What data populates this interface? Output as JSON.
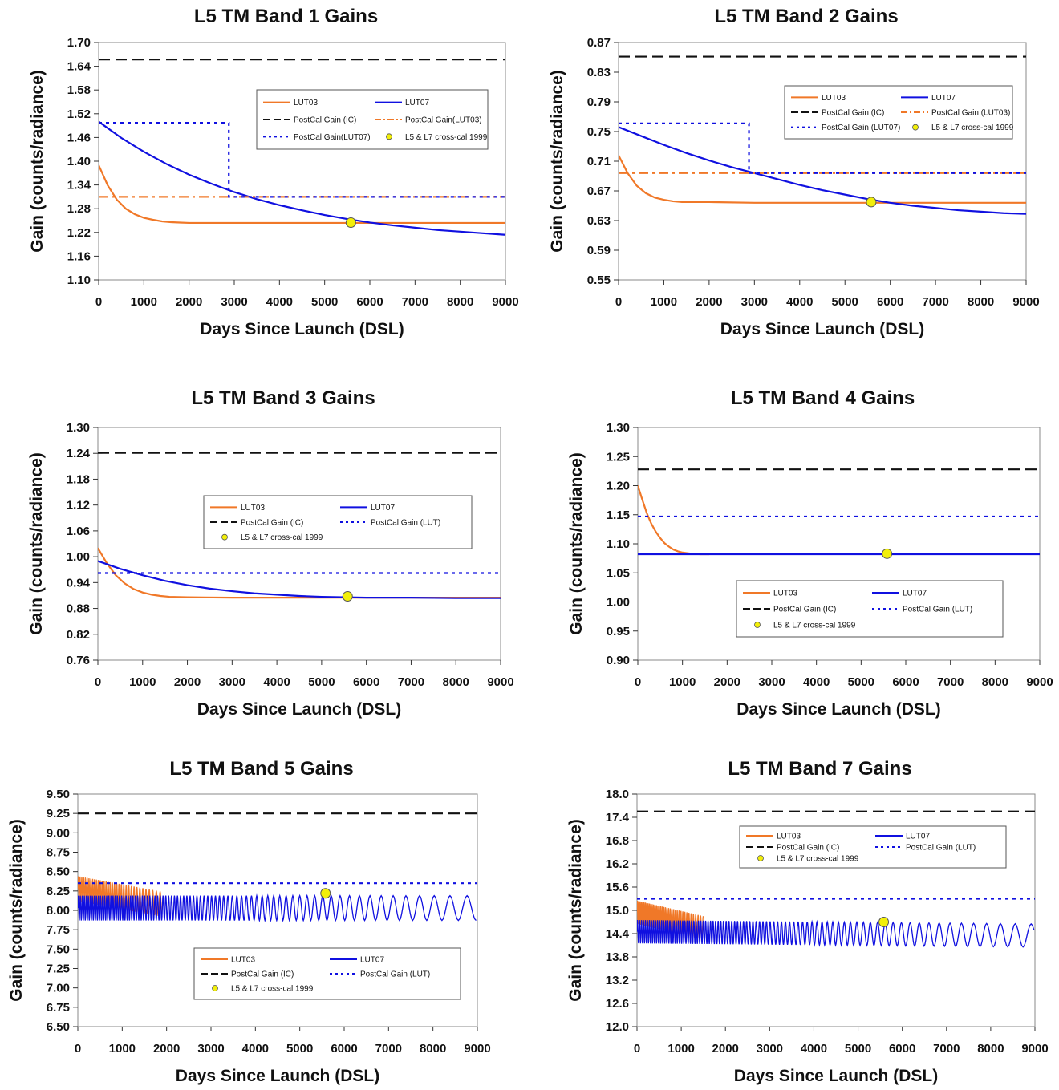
{
  "chart_data": [
    {
      "type": "line",
      "title": "L5 TM Band 1 Gains",
      "xlabel": "Days Since Launch (DSL)",
      "ylabel": "Gain (counts/radiance)",
      "xlim": [
        0,
        9000
      ],
      "ylim": [
        1.1,
        1.7
      ],
      "xticks": [
        "0",
        "1000",
        "2000",
        "3000",
        "4000",
        "5000",
        "6000",
        "7000",
        "8000",
        "9000"
      ],
      "yticks": [
        "1.10",
        "1.16",
        "1.22",
        "1.28",
        "1.34",
        "1.40",
        "1.46",
        "1.52",
        "1.58",
        "1.64",
        "1.70"
      ],
      "series": [
        {
          "name": "LUT03",
          "color": "#f07828",
          "style": "solid",
          "x": [
            0,
            200,
            400,
            600,
            800,
            1000,
            1200,
            1400,
            1600,
            1800,
            2000,
            2500,
            3000,
            4000,
            5000,
            6000,
            7000,
            8000,
            9000
          ],
          "y": [
            1.39,
            1.339,
            1.303,
            1.28,
            1.266,
            1.257,
            1.252,
            1.248,
            1.246,
            1.245,
            1.244,
            1.244,
            1.244,
            1.244,
            1.244,
            1.244,
            1.244,
            1.244,
            1.244
          ]
        },
        {
          "name": "LUT07",
          "color": "#1010e0",
          "style": "solid",
          "x": [
            0,
            500,
            1000,
            1500,
            2000,
            2500,
            3000,
            3500,
            4000,
            4500,
            5000,
            5500,
            6000,
            6500,
            7000,
            7500,
            8000,
            8500,
            9000
          ],
          "y": [
            1.5,
            1.459,
            1.424,
            1.393,
            1.366,
            1.343,
            1.322,
            1.304,
            1.289,
            1.276,
            1.264,
            1.254,
            1.245,
            1.238,
            1.232,
            1.226,
            1.222,
            1.218,
            1.214
          ]
        },
        {
          "name": "PostCal Gain (IC)",
          "color": "#111111",
          "style": "dash",
          "x": [
            0,
            9000
          ],
          "y": [
            1.657,
            1.657
          ]
        },
        {
          "name": "PostCal Gain(LUT03)",
          "color": "#f07828",
          "style": "dashdot",
          "x": [
            0,
            9000
          ],
          "y": [
            1.31,
            1.31
          ]
        },
        {
          "name": "PostCal Gain(LUT07)",
          "color": "#1010e0",
          "style": "dot",
          "x": [
            0,
            2880,
            2880,
            9000
          ],
          "y": [
            1.497,
            1.497,
            1.31,
            1.31
          ]
        },
        {
          "name": "L5 & L7 cross-cal 1999",
          "color": "#f2ef0a",
          "style": "marker",
          "x": [
            5580
          ],
          "y": [
            1.245
          ]
        }
      ],
      "legend": {
        "placement": "top-right",
        "items": [
          "LUT03",
          "LUT07",
          "PostCal Gain (IC)",
          "PostCal Gain(LUT03)",
          "PostCal Gain(LUT07)",
          "L5 & L7 cross-cal 1999"
        ]
      }
    },
    {
      "type": "line",
      "title": "L5 TM Band 2 Gains",
      "xlabel": "Days Since Launch (DSL)",
      "ylabel": "Gain (counts/radiance)",
      "xlim": [
        0,
        9000
      ],
      "ylim": [
        0.55,
        0.87
      ],
      "xticks": [
        "0",
        "1000",
        "2000",
        "3000",
        "4000",
        "5000",
        "6000",
        "7000",
        "8000",
        "9000"
      ],
      "yticks": [
        "0.55",
        "0.59",
        "0.63",
        "0.67",
        "0.71",
        "0.75",
        "0.79",
        "0.83",
        "0.87"
      ],
      "series": [
        {
          "name": "LUT03",
          "color": "#f07828",
          "style": "solid",
          "x": [
            0,
            200,
            400,
            600,
            800,
            1000,
            1200,
            1400,
            1600,
            2000,
            3000,
            4000,
            5000,
            6000,
            7000,
            8000,
            9000
          ],
          "y": [
            0.718,
            0.694,
            0.677,
            0.667,
            0.661,
            0.658,
            0.656,
            0.655,
            0.655,
            0.655,
            0.654,
            0.654,
            0.654,
            0.654,
            0.654,
            0.654,
            0.654
          ]
        },
        {
          "name": "LUT07",
          "color": "#1010e0",
          "style": "solid",
          "x": [
            0,
            500,
            1000,
            1500,
            2000,
            2500,
            3000,
            3500,
            4000,
            4500,
            5000,
            5500,
            6000,
            6500,
            7000,
            7500,
            8000,
            8500,
            9000
          ],
          "y": [
            0.756,
            0.744,
            0.732,
            0.721,
            0.711,
            0.702,
            0.694,
            0.686,
            0.678,
            0.671,
            0.665,
            0.659,
            0.654,
            0.65,
            0.647,
            0.644,
            0.642,
            0.64,
            0.639
          ]
        },
        {
          "name": "PostCal Gain (IC)",
          "color": "#111111",
          "style": "dash",
          "x": [
            0,
            9000
          ],
          "y": [
            0.851,
            0.851
          ]
        },
        {
          "name": "PostCal Gain (LUT03)",
          "color": "#f07828",
          "style": "dashdot",
          "x": [
            0,
            9000
          ],
          "y": [
            0.694,
            0.694
          ]
        },
        {
          "name": "PostCal Gain (LUT07)",
          "color": "#1010e0",
          "style": "dot",
          "x": [
            0,
            2880,
            2880,
            9000
          ],
          "y": [
            0.761,
            0.761,
            0.694,
            0.694
          ]
        },
        {
          "name": "L5 & L7 cross-cal 1999",
          "color": "#f2ef0a",
          "style": "marker",
          "x": [
            5580
          ],
          "y": [
            0.655
          ]
        }
      ],
      "legend": {
        "placement": "top-right",
        "items": [
          "LUT03",
          "LUT07",
          "PostCal Gain (IC)",
          "PostCal Gain (LUT03)",
          "PostCal Gain (LUT07)",
          "L5 & L7 cross-cal 1999"
        ]
      }
    },
    {
      "type": "line",
      "title": "L5 TM Band 3 Gains",
      "xlabel": "Days Since Launch (DSL)",
      "ylabel": "Gain (counts/radiance)",
      "xlim": [
        0,
        9000
      ],
      "ylim": [
        0.76,
        1.3
      ],
      "xticks": [
        "0",
        "1000",
        "2000",
        "3000",
        "4000",
        "5000",
        "6000",
        "7000",
        "8000",
        "9000"
      ],
      "yticks": [
        "0.76",
        "0.82",
        "0.88",
        "0.94",
        "1.00",
        "1.06",
        "1.12",
        "1.18",
        "1.24",
        "1.30"
      ],
      "series": [
        {
          "name": "LUT03",
          "color": "#f07828",
          "style": "solid",
          "x": [
            0,
            200,
            400,
            600,
            800,
            1000,
            1200,
            1400,
            1600,
            2000,
            3000,
            4000,
            5000,
            6000,
            7000,
            8000,
            9000
          ],
          "y": [
            1.02,
            0.985,
            0.957,
            0.938,
            0.925,
            0.917,
            0.912,
            0.909,
            0.907,
            0.906,
            0.905,
            0.905,
            0.905,
            0.905,
            0.905,
            0.905,
            0.905
          ]
        },
        {
          "name": "LUT07",
          "color": "#1010e0",
          "style": "solid",
          "x": [
            0,
            500,
            1000,
            1500,
            2000,
            2500,
            3000,
            3500,
            4000,
            4500,
            5000,
            6000,
            7000,
            8000,
            9000
          ],
          "y": [
            0.99,
            0.972,
            0.957,
            0.944,
            0.934,
            0.926,
            0.92,
            0.915,
            0.912,
            0.909,
            0.907,
            0.905,
            0.905,
            0.904,
            0.904
          ]
        },
        {
          "name": "PostCal Gain (IC)",
          "color": "#111111",
          "style": "dash",
          "x": [
            0,
            9000
          ],
          "y": [
            1.241,
            1.241
          ]
        },
        {
          "name": "PostCal Gain (LUT)",
          "color": "#1010e0",
          "style": "dot",
          "x": [
            0,
            9000
          ],
          "y": [
            0.962,
            0.962
          ]
        },
        {
          "name": "L5 & L7 cross-cal 1999",
          "color": "#f2ef0a",
          "style": "marker",
          "x": [
            5580
          ],
          "y": [
            0.908
          ]
        }
      ],
      "legend": {
        "placement": "center",
        "items": [
          "LUT03",
          "LUT07",
          "PostCal Gain (IC)",
          "PostCal Gain (LUT)",
          "L5 & L7 cross-cal 1999"
        ]
      }
    },
    {
      "type": "line",
      "title": "L5 TM Band 4 Gains",
      "xlabel": "Days Since Launch (DSL)",
      "ylabel": "Gain (counts/radiance)",
      "xlim": [
        0,
        9000
      ],
      "ylim": [
        0.9,
        1.3
      ],
      "xticks": [
        "0",
        "1000",
        "2000",
        "3000",
        "4000",
        "5000",
        "6000",
        "7000",
        "8000",
        "9000"
      ],
      "yticks": [
        "0.90",
        "0.95",
        "1.00",
        "1.05",
        "1.10",
        "1.15",
        "1.20",
        "1.25",
        "1.30"
      ],
      "series": [
        {
          "name": "LUT03",
          "color": "#f07828",
          "style": "solid",
          "x": [
            0,
            100,
            200,
            300,
            400,
            500,
            600,
            700,
            800,
            900,
            1000,
            1200,
            1400,
            1600
          ],
          "y": [
            1.2,
            1.176,
            1.153,
            1.135,
            1.121,
            1.11,
            1.101,
            1.095,
            1.09,
            1.087,
            1.085,
            1.083,
            1.082,
            1.082
          ]
        },
        {
          "name": "LUT07",
          "color": "#1010e0",
          "style": "solid",
          "x": [
            0,
            9000
          ],
          "y": [
            1.082,
            1.082
          ]
        },
        {
          "name": "PostCal Gain (IC)",
          "color": "#111111",
          "style": "dash",
          "x": [
            0,
            9000
          ],
          "y": [
            1.228,
            1.228
          ]
        },
        {
          "name": "PostCal Gain (LUT)",
          "color": "#1010e0",
          "style": "dot",
          "x": [
            0,
            9000
          ],
          "y": [
            1.147,
            1.147
          ]
        },
        {
          "name": "L5 & L7 cross-cal 1999",
          "color": "#f2ef0a",
          "style": "marker",
          "x": [
            5580
          ],
          "y": [
            1.083
          ]
        }
      ],
      "legend": {
        "placement": "lower-center",
        "items": [
          "LUT03",
          "LUT07",
          "PostCal Gain (IC)",
          "PostCal Gain (LUT)",
          "L5 & L7 cross-cal 1999"
        ]
      }
    },
    {
      "type": "line",
      "title": "L5 TM Band 5 Gains",
      "xlabel": "Days Since Launch (DSL)",
      "ylabel": "Gain (counts/radiance)",
      "xlim": [
        0,
        9000
      ],
      "ylim": [
        6.5,
        9.5
      ],
      "xticks": [
        "0",
        "1000",
        "2000",
        "3000",
        "4000",
        "5000",
        "6000",
        "7000",
        "8000",
        "9000"
      ],
      "yticks": [
        "6.50",
        "6.75",
        "7.00",
        "7.25",
        "7.50",
        "7.75",
        "8.00",
        "8.25",
        "8.50",
        "8.75",
        "9.00",
        "9.25",
        "9.50"
      ],
      "series": [
        {
          "name": "LUT03",
          "color": "#f07828",
          "style": "oscillating",
          "start": 0,
          "end": 1900,
          "base_start": 8.28,
          "base_end": 8.08,
          "amplitude": 0.16,
          "period_start": 40,
          "period_end": 90
        },
        {
          "name": "LUT07",
          "color": "#1010e0",
          "style": "oscillating",
          "start": 0,
          "end": 9000,
          "base_start": 8.03,
          "base_end": 8.03,
          "amplitude": 0.16,
          "period_start": 45,
          "period_end": 420
        },
        {
          "name": "PostCal Gain (IC)",
          "color": "#111111",
          "style": "dash",
          "x": [
            0,
            9000
          ],
          "y": [
            9.25,
            9.25
          ]
        },
        {
          "name": "PostCal Gain (LUT)",
          "color": "#1010e0",
          "style": "dot",
          "x": [
            0,
            9000
          ],
          "y": [
            8.35,
            8.35
          ]
        },
        {
          "name": "L5 & L7 cross-cal 1999",
          "color": "#f2ef0a",
          "style": "marker",
          "x": [
            5580
          ],
          "y": [
            8.22
          ]
        }
      ],
      "legend": {
        "placement": "lower-center",
        "items": [
          "LUT03",
          "LUT07",
          "PostCal Gain (IC)",
          "PostCal Gain (LUT)",
          "L5 & L7 cross-cal 1999"
        ]
      }
    },
    {
      "type": "line",
      "title": "L5 TM Band 7 Gains",
      "xlabel": "Days Since Launch (DSL)",
      "ylabel": "Gain (counts/radiance)",
      "xlim": [
        0,
        9000
      ],
      "ylim": [
        12.0,
        18.0
      ],
      "xticks": [
        "0",
        "1000",
        "2000",
        "3000",
        "4000",
        "5000",
        "6000",
        "7000",
        "8000",
        "9000"
      ],
      "yticks": [
        "12.0",
        "12.6",
        "13.2",
        "13.8",
        "14.4",
        "15.0",
        "15.6",
        "16.2",
        "16.8",
        "17.4",
        "18.0"
      ],
      "series": [
        {
          "name": "LUT03",
          "color": "#f07828",
          "style": "oscillating",
          "start": 0,
          "end": 1500,
          "base_start": 14.95,
          "base_end": 14.55,
          "amplitude": 0.3,
          "period_start": 30,
          "period_end": 60
        },
        {
          "name": "LUT07",
          "color": "#1010e0",
          "style": "oscillating",
          "start": 0,
          "end": 9000,
          "base_start": 14.45,
          "base_end": 14.35,
          "amplitude": 0.3,
          "period_start": 45,
          "period_end": 380
        },
        {
          "name": "PostCal Gain (IC)",
          "color": "#111111",
          "style": "dash",
          "x": [
            0,
            9000
          ],
          "y": [
            17.55,
            17.55
          ]
        },
        {
          "name": "PostCal Gain (LUT)",
          "color": "#1010e0",
          "style": "dot",
          "x": [
            0,
            9000
          ],
          "y": [
            15.3,
            15.3
          ]
        },
        {
          "name": "L5 & L7 cross-cal 1999",
          "color": "#f2ef0a",
          "style": "marker",
          "x": [
            5580
          ],
          "y": [
            14.7
          ]
        }
      ],
      "legend": {
        "placement": "top-center",
        "items": [
          "LUT03",
          "LUT07",
          "PostCal Gain (IC)",
          "PostCal Gain (LUT)",
          "L5 & L7 cross-cal 1999"
        ]
      }
    }
  ]
}
